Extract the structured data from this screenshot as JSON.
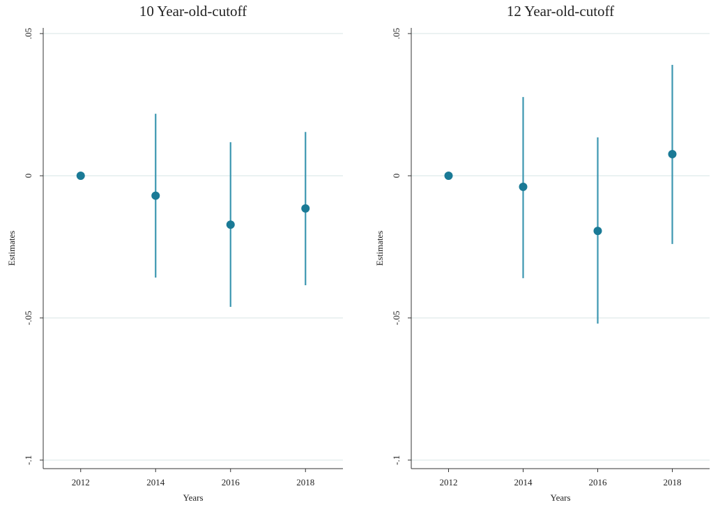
{
  "chart_data": [
    {
      "type": "scatter",
      "title": "10 Year-old-cutoff",
      "x_label": "Years",
      "y_label": "Estimates",
      "x": [
        2012,
        2014,
        2016,
        2018
      ],
      "values": [
        0,
        -0.007,
        -0.0172,
        -0.0115
      ],
      "lower": [
        null,
        -0.0358,
        -0.0461,
        -0.0385
      ],
      "upper": [
        null,
        0.0218,
        0.0118,
        0.0154
      ],
      "color": "#1a7a96",
      "errorbar_color": "#3c97b0",
      "xlim": [
        2011,
        2019
      ],
      "xticks": [
        2012,
        2014,
        2016,
        2018
      ],
      "ylim": [
        -0.103,
        0.052
      ],
      "yticks": [
        {
          "value": 0.05,
          "label": ".05"
        },
        0,
        {
          "value": -0.05,
          "label": "-.05"
        },
        {
          "value": -0.1,
          "label": "-.1"
        }
      ],
      "grid": true
    },
    {
      "type": "scatter",
      "title": "12 Year-old-cutoff",
      "x_label": "Years",
      "y_label": "Estimates",
      "x": [
        2012,
        2014,
        2016,
        2018
      ],
      "values": [
        0,
        -0.0039,
        -0.0194,
        0.0076
      ],
      "lower": [
        null,
        -0.036,
        -0.052,
        -0.024
      ],
      "upper": [
        null,
        0.0277,
        0.0135,
        0.039
      ],
      "color": "#1a7a96",
      "errorbar_color": "#3c97b0",
      "xlim": [
        2011,
        2019
      ],
      "xticks": [
        2012,
        2014,
        2016,
        2018
      ],
      "ylim": [
        -0.103,
        0.052
      ],
      "yticks": [
        {
          "value": 0.05,
          "label": ".05"
        },
        0,
        {
          "value": -0.05,
          "label": "-.05"
        },
        {
          "value": -0.1,
          "label": "-.1"
        }
      ],
      "grid": true
    }
  ]
}
